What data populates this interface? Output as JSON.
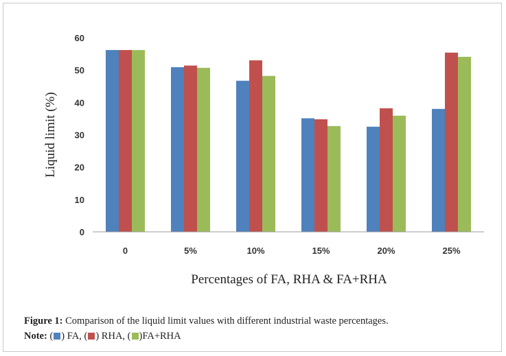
{
  "chart_data": {
    "type": "bar",
    "title": "",
    "xlabel": "Percentages of FA, RHA & FA+RHA",
    "ylabel": "Liquid limit (%)",
    "ylim": [
      0,
      60
    ],
    "yticks": [
      0,
      10,
      20,
      30,
      40,
      50,
      60
    ],
    "grid": false,
    "legend": "none",
    "categories": [
      "0",
      "5%",
      "10%",
      "15%",
      "20%",
      "25%"
    ],
    "series": [
      {
        "name": "FA",
        "color": "#4f81bd",
        "values": [
          56.2,
          50.9,
          46.7,
          35.1,
          32.5,
          38.0
        ]
      },
      {
        "name": "RHA",
        "color": "#c0504d",
        "values": [
          56.2,
          51.4,
          53.0,
          34.8,
          38.2,
          55.4
        ]
      },
      {
        "name": "FA+RHA",
        "color": "#9bbb59",
        "values": [
          56.2,
          50.7,
          48.2,
          32.7,
          35.9,
          54.1
        ]
      }
    ]
  },
  "caption": {
    "figure_label": "Figure 1:",
    "figure_text": "Comparison of the liquid limit values with different industrial waste percentages.",
    "note_label": "Note:",
    "note_fa": "FA,",
    "note_rha": "RHA,",
    "note_farha": "FA+RHA"
  }
}
